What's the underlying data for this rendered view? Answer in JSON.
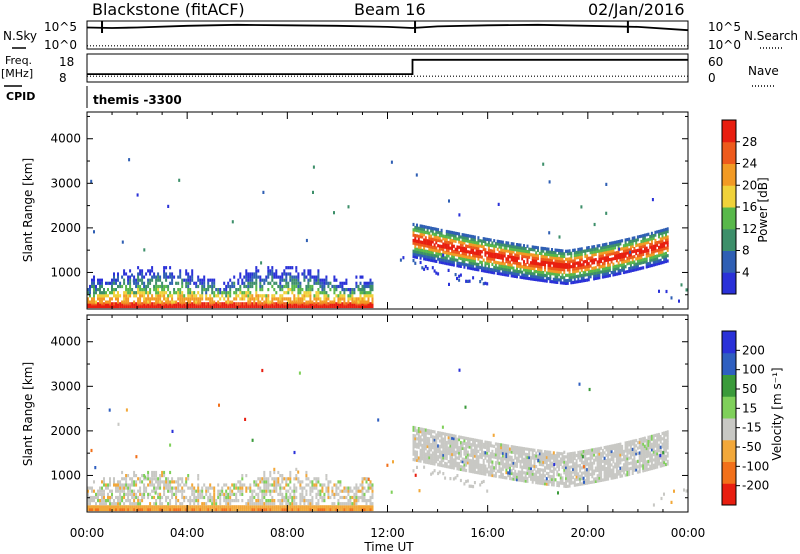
{
  "header": {
    "station": "Blackstone (fitACF)",
    "beam": "Beam 16",
    "date": "02/Jan/2016"
  },
  "summary": {
    "nsky_label": "N.Sky",
    "nsearch_label": "N.Search",
    "freq_label_1": "Freq.",
    "freq_label_2": "[MHz]",
    "cpid_label": "CPID",
    "nave_label": "Nave",
    "count_ticks": [
      "10^5",
      "10^0"
    ],
    "freq_ticks": [
      "18",
      "8"
    ],
    "nave_ticks": [
      "60",
      "0"
    ],
    "cpid_value": "themis -3300"
  },
  "chart_data": [
    {
      "type": "line",
      "name": "summary-nsky-nsearch",
      "x": [
        0,
        1,
        2,
        4,
        6,
        8,
        10,
        12,
        13,
        14,
        16,
        18,
        20,
        22,
        24
      ],
      "series": [
        {
          "name": "N.Sky",
          "style": "solid",
          "values": [
            4.0,
            3.9,
            4.0,
            4.3,
            4.5,
            4.4,
            4.3,
            4.1,
            3.9,
            4.2,
            4.4,
            4.5,
            4.3,
            4.1,
            3.5
          ]
        },
        {
          "name": "N.Search",
          "style": "dotted",
          "values": [
            0.6,
            0.6,
            0.6,
            0.6,
            0.6,
            0.6,
            0.6,
            0.6,
            0.6,
            0.6,
            0.6,
            0.6,
            0.6,
            0.6,
            0.6
          ]
        }
      ]
    },
    {
      "type": "line",
      "name": "summary-freq-nave",
      "x": [
        0,
        13,
        13,
        24
      ],
      "series": [
        {
          "name": "Freq",
          "style": "solid",
          "values": [
            10.4,
            10.4,
            16.5,
            16.5
          ]
        },
        {
          "name": "Nave",
          "style": "dotted",
          "values": [
            9.5,
            9.5,
            9.5,
            9.5
          ]
        }
      ]
    },
    {
      "type": "heatmap",
      "name": "power",
      "x_range": [
        0,
        24
      ],
      "ylabel": "Slant Range [km]",
      "ylim": [
        180,
        4600
      ],
      "yticks": [
        1000,
        2000,
        3000,
        4000
      ],
      "colorbar": {
        "label": "Power [dB]",
        "ticks": [
          "4",
          "8",
          "12",
          "16",
          "20",
          "24",
          "28"
        ],
        "range": [
          0,
          30
        ]
      },
      "colors": [
        "#2a31d8",
        "#2f5fb4",
        "#3d8f6a",
        "#58b84a",
        "#f0d23a",
        "#f29a24",
        "#ee5a1c",
        "#e81e10"
      ],
      "regions": [
        {
          "x": [
            0,
            11.4
          ],
          "bottom": 180,
          "top": 1200,
          "level": "mixed"
        },
        {
          "x": [
            13.0,
            24
          ],
          "bottom": 450,
          "top": 2400,
          "level": "band"
        }
      ]
    },
    {
      "type": "heatmap",
      "name": "velocity",
      "x_range": [
        0,
        24
      ],
      "ylabel": "Slant Range [km]",
      "xlabel": "Time UT",
      "ylim": [
        180,
        4600
      ],
      "yticks": [
        1000,
        2000,
        3000,
        4000
      ],
      "xticks": [
        "00:00",
        "04:00",
        "08:00",
        "12:00",
        "16:00",
        "20:00",
        "00:00"
      ],
      "colorbar": {
        "label": "Velocity [m s⁻¹]",
        "ticks": [
          "200",
          "100",
          "50",
          "15",
          "-15",
          "-50",
          "-100",
          "-200"
        ],
        "range": [
          -250,
          250
        ]
      },
      "colors": [
        "#e81e10",
        "#f2701a",
        "#f2a83a",
        "#c8c8c4",
        "#7fd05a",
        "#3a9a3a",
        "#2f5fc0",
        "#2a31d8"
      ],
      "regions": [
        {
          "x": [
            0,
            11.4
          ],
          "bottom": 180,
          "top": 1200,
          "level": "negative"
        },
        {
          "x": [
            13.0,
            24
          ],
          "bottom": 450,
          "top": 2400,
          "level": "near-zero"
        }
      ]
    }
  ]
}
